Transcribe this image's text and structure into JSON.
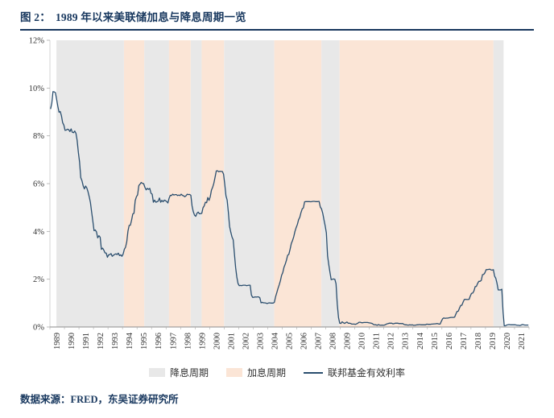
{
  "header": {
    "figure_label": "图 2：",
    "title": "1989 年以来美联储加息与降息周期一览"
  },
  "source": "数据来源：FRED，东吴证券研究所",
  "colors": {
    "accent_navy": "#17375E",
    "cut_band": "#E8E8E8",
    "hike_band": "#FBE5D6",
    "line": "#2A4E6E",
    "axis_text": "#333333",
    "axis_line": "#8C8C8C"
  },
  "legend": [
    {
      "label": "降息周期",
      "type": "band",
      "color_key": "cut_band",
      "icon": "rate-cut-swatch"
    },
    {
      "label": "加息周期",
      "type": "band",
      "color_key": "hike_band",
      "icon": "rate-hike-swatch"
    },
    {
      "label": "联邦基金有效利率",
      "type": "line",
      "color_key": "line",
      "icon": "line-swatch"
    }
  ],
  "chart_data": {
    "type": "line",
    "title": "1989 年以来美联储加息与降息周期一览",
    "xlabel": "",
    "ylabel": "",
    "ylim": [
      0,
      12
    ],
    "y_ticks": [
      "0%",
      "2%",
      "4%",
      "6%",
      "8%",
      "10%",
      "12%"
    ],
    "x_start_year": 1989,
    "x_end_year": 2022,
    "x_tick_labels": [
      "1989",
      "1990",
      "1991",
      "1992",
      "1993",
      "1994",
      "1995",
      "1996",
      "1997",
      "1998",
      "1999",
      "2000",
      "2001",
      "2002",
      "2003",
      "2004",
      "2005",
      "2006",
      "2007",
      "2008",
      "2009",
      "2010",
      "2011",
      "2012",
      "2013",
      "2014",
      "2015",
      "2016",
      "2017",
      "2018",
      "2019",
      "2020",
      "2021"
    ],
    "grid": false,
    "legend_position": "bottom",
    "bands": [
      {
        "kind": "cut",
        "from": 1989.45,
        "to": 1994.1
      },
      {
        "kind": "hike",
        "from": 1994.1,
        "to": 1995.5
      },
      {
        "kind": "cut",
        "from": 1995.5,
        "to": 1997.2
      },
      {
        "kind": "hike",
        "from": 1997.2,
        "to": 1998.7
      },
      {
        "kind": "cut",
        "from": 1998.7,
        "to": 1999.45
      },
      {
        "kind": "hike",
        "from": 1999.45,
        "to": 2001.0
      },
      {
        "kind": "cut",
        "from": 2001.0,
        "to": 2004.45
      },
      {
        "kind": "hike",
        "from": 2004.45,
        "to": 2007.7
      },
      {
        "kind": "cut",
        "from": 2007.7,
        "to": 2008.95
      },
      {
        "kind": "hike",
        "from": 2008.95,
        "to": 2019.55
      },
      {
        "kind": "cut",
        "from": 2019.55,
        "to": 2020.25
      }
    ],
    "series": [
      {
        "name": "联邦基金有效利率",
        "unit": "%",
        "start": "1989-01",
        "frequency": "monthly",
        "values": [
          9.12,
          9.36,
          9.85,
          9.84,
          9.81,
          9.53,
          9.24,
          8.99,
          9.02,
          8.84,
          8.55,
          8.45,
          8.23,
          8.24,
          8.28,
          8.26,
          8.18,
          8.29,
          8.15,
          8.13,
          8.2,
          8.11,
          7.81,
          7.31,
          6.91,
          6.25,
          6.12,
          5.91,
          5.78,
          5.9,
          5.82,
          5.66,
          5.45,
          5.21,
          4.81,
          4.43,
          4.03,
          4.06,
          3.98,
          3.73,
          3.82,
          3.76,
          3.25,
          3.3,
          3.22,
          3.1,
          3.09,
          2.92,
          3.02,
          3.03,
          3.07,
          2.96,
          3.0,
          3.04,
          3.06,
          3.03,
          3.09,
          2.99,
          3.02,
          2.96,
          3.05,
          3.25,
          3.34,
          3.56,
          4.01,
          4.25,
          4.26,
          4.47,
          4.73,
          4.76,
          5.29,
          5.45,
          5.53,
          5.92,
          5.98,
          6.05,
          6.01,
          6.0,
          5.85,
          5.74,
          5.8,
          5.76,
          5.8,
          5.6,
          5.56,
          5.22,
          5.31,
          5.22,
          5.24,
          5.27,
          5.4,
          5.22,
          5.3,
          5.24,
          5.31,
          5.29,
          5.25,
          5.19,
          5.39,
          5.51,
          5.5,
          5.56,
          5.52,
          5.54,
          5.54,
          5.5,
          5.52,
          5.5,
          5.56,
          5.51,
          5.49,
          5.45,
          5.49,
          5.56,
          5.54,
          5.55,
          5.51,
          5.07,
          4.83,
          4.68,
          4.63,
          4.76,
          4.81,
          4.74,
          4.74,
          4.76,
          4.99,
          5.07,
          5.22,
          5.2,
          5.42,
          5.3,
          5.45,
          5.73,
          5.85,
          6.02,
          6.27,
          6.53,
          6.54,
          6.5,
          6.52,
          6.51,
          6.51,
          6.4,
          5.98,
          5.49,
          5.31,
          4.8,
          4.21,
          3.97,
          3.77,
          3.65,
          3.07,
          2.49,
          2.09,
          1.82,
          1.73,
          1.74,
          1.73,
          1.75,
          1.75,
          1.75,
          1.73,
          1.74,
          1.75,
          1.75,
          1.34,
          1.24,
          1.24,
          1.26,
          1.25,
          1.26,
          1.26,
          1.22,
          1.01,
          1.03,
          1.01,
          1.01,
          1.0,
          0.98,
          1.0,
          1.01,
          1.0,
          1.0,
          1.0,
          1.03,
          1.26,
          1.43,
          1.61,
          1.76,
          1.93,
          2.16,
          2.28,
          2.5,
          2.63,
          2.79,
          3.0,
          3.04,
          3.26,
          3.5,
          3.62,
          3.78,
          4.0,
          4.16,
          4.29,
          4.49,
          4.59,
          4.79,
          4.94,
          4.99,
          5.24,
          5.25,
          5.25,
          5.25,
          5.25,
          5.24,
          5.25,
          5.26,
          5.26,
          5.25,
          5.25,
          5.25,
          5.26,
          5.02,
          4.94,
          4.76,
          4.49,
          4.24,
          3.94,
          2.98,
          2.61,
          2.28,
          1.98,
          2.0,
          2.01,
          2.0,
          1.81,
          0.97,
          0.39,
          0.16,
          0.15,
          0.22,
          0.18,
          0.15,
          0.18,
          0.21,
          0.16,
          0.16,
          0.15,
          0.12,
          0.12,
          0.12,
          0.11,
          0.13,
          0.16,
          0.2,
          0.2,
          0.18,
          0.18,
          0.19,
          0.19,
          0.19,
          0.19,
          0.18,
          0.17,
          0.16,
          0.14,
          0.1,
          0.09,
          0.09,
          0.07,
          0.1,
          0.08,
          0.07,
          0.08,
          0.07,
          0.08,
          0.1,
          0.13,
          0.14,
          0.16,
          0.16,
          0.16,
          0.13,
          0.14,
          0.16,
          0.16,
          0.16,
          0.14,
          0.15,
          0.14,
          0.15,
          0.11,
          0.09,
          0.09,
          0.08,
          0.08,
          0.09,
          0.08,
          0.09,
          0.07,
          0.07,
          0.08,
          0.09,
          0.09,
          0.1,
          0.09,
          0.09,
          0.09,
          0.09,
          0.09,
          0.12,
          0.11,
          0.11,
          0.11,
          0.12,
          0.12,
          0.13,
          0.13,
          0.14,
          0.14,
          0.12,
          0.12,
          0.24,
          0.34,
          0.38,
          0.36,
          0.37,
          0.37,
          0.38,
          0.39,
          0.4,
          0.4,
          0.4,
          0.41,
          0.54,
          0.65,
          0.66,
          0.79,
          0.9,
          0.91,
          1.04,
          1.15,
          1.16,
          1.15,
          1.15,
          1.16,
          1.3,
          1.41,
          1.42,
          1.51,
          1.69,
          1.7,
          1.82,
          1.91,
          1.91,
          1.95,
          2.19,
          2.2,
          2.27,
          2.4,
          2.4,
          2.41,
          2.42,
          2.39,
          2.38,
          2.4,
          2.13,
          2.04,
          1.83,
          1.55,
          1.55,
          1.55,
          1.58,
          0.65,
          0.05,
          0.05,
          0.08,
          0.09,
          0.1,
          0.09,
          0.09,
          0.09,
          0.09,
          0.09,
          0.08,
          0.07,
          0.07,
          0.06,
          0.08,
          0.1,
          0.09,
          0.08,
          0.08,
          0.08,
          0.08
        ]
      }
    ]
  }
}
